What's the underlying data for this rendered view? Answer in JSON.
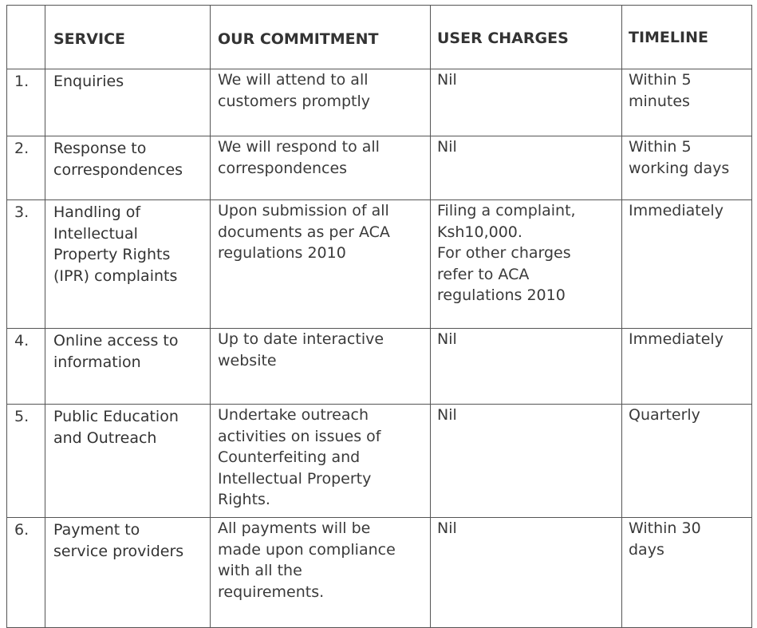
{
  "table": {
    "headers": {
      "number": "",
      "service": "SERVICE",
      "commitment": "OUR COMMITMENT",
      "charges": "USER CHARGES",
      "timeline": "TIMELINE"
    },
    "rows": [
      {
        "number": "1.",
        "service": [
          "Enquiries"
        ],
        "commitment": [
          "We will attend to all",
          "customers promptly"
        ],
        "charges": [
          "Nil"
        ],
        "timeline": [
          "Within 5",
          "minutes"
        ]
      },
      {
        "number": "2.",
        "service": [
          "Response to",
          "correspondences"
        ],
        "commitment": [
          "We will respond to all",
          "correspondences"
        ],
        "charges": [
          "Nil"
        ],
        "timeline": [
          "Within 5",
          "working days"
        ]
      },
      {
        "number": "3.",
        "service": [
          "Handling of",
          "Intellectual",
          "Property Rights",
          "(IPR) complaints"
        ],
        "commitment": [
          "Upon submission of all",
          "documents as per ACA",
          "regulations 2010"
        ],
        "charges": [
          "Filing a complaint,",
          "Ksh10,000.",
          "For other charges",
          "refer to ACA",
          "regulations 2010"
        ],
        "timeline": [
          "Immediately"
        ]
      },
      {
        "number": "4.",
        "service": [
          "Online access to",
          "information"
        ],
        "commitment": [
          "Up to date interactive",
          "website"
        ],
        "charges": [
          "Nil"
        ],
        "timeline": [
          "Immediately"
        ]
      },
      {
        "number": "5.",
        "service": [
          "Public Education",
          "and Outreach"
        ],
        "commitment": [
          "Undertake outreach",
          "activities on issues of",
          "Counterfeiting and",
          "Intellectual Property",
          "Rights."
        ],
        "charges": [
          "Nil"
        ],
        "timeline": [
          "Quarterly"
        ]
      },
      {
        "number": "6.",
        "service": [
          "Payment to",
          "service providers"
        ],
        "commitment": [
          "All payments will be",
          "made upon compliance",
          "with all the",
          "requirements."
        ],
        "charges": [
          "Nil"
        ],
        "timeline": [
          "Within 30",
          "days"
        ]
      }
    ]
  }
}
